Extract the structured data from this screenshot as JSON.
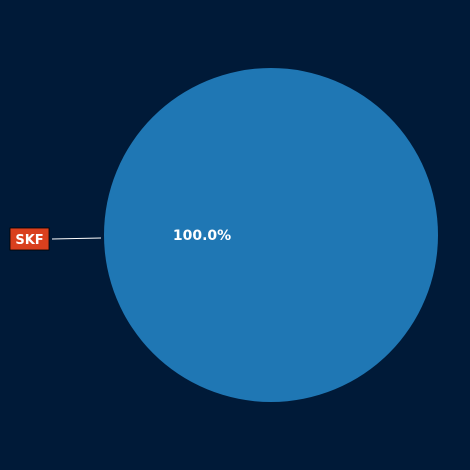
{
  "chart_data": {
    "type": "pie",
    "slices": [
      {
        "label": "SKF",
        "value": 100.0,
        "percent_label": "100.0%",
        "color": "#1f77b4",
        "label_box_color": "#d9401e"
      }
    ]
  },
  "background_color": "#001a38"
}
